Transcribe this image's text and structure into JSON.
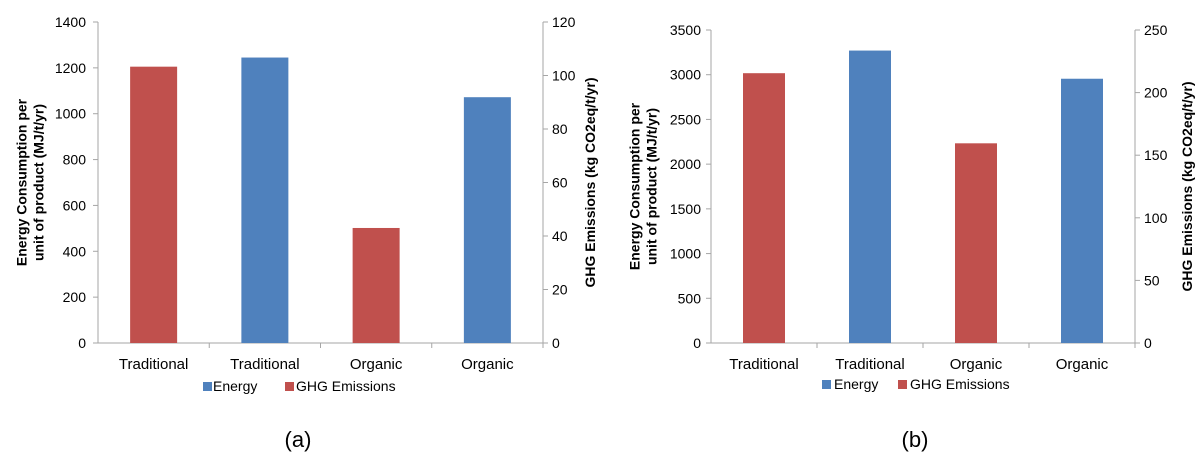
{
  "colors": {
    "energy": "#4f81bd",
    "ghg": "#c0504d",
    "axis": "#a6a6a6"
  },
  "chart_data": [
    {
      "type": "bar",
      "caption": "(a)",
      "categories": [
        "Traditional",
        "Traditional",
        "Organic",
        "Organic"
      ],
      "series": [
        {
          "name": "Energy",
          "axis": "left",
          "values": [
            null,
            1245,
            null,
            1072
          ]
        },
        {
          "name": "GHG Emissions",
          "axis": "right",
          "values": [
            103.3,
            null,
            43.0,
            null
          ]
        }
      ],
      "ylabel": "Energy Consumption per unit of product (MJ/t/yr)",
      "y2label": "GHG Emissions (kg CO2eq/t/yr)",
      "ylim": [
        0,
        1400
      ],
      "y2lim": [
        0,
        120
      ],
      "yticks": [
        "0",
        "200",
        "400",
        "600",
        "800",
        "1000",
        "1200",
        "1400"
      ],
      "y2ticks": [
        "0",
        "20",
        "40",
        "60",
        "80",
        "100",
        "120"
      ],
      "legend_position": "bottom",
      "grid": false
    },
    {
      "type": "bar",
      "caption": "(b)",
      "categories": [
        "Traditional",
        "Traditional",
        "Organic",
        "Organic"
      ],
      "series": [
        {
          "name": "Energy",
          "axis": "left",
          "values": [
            null,
            3270,
            null,
            2955
          ]
        },
        {
          "name": "GHG Emissions",
          "axis": "right",
          "values": [
            215.5,
            null,
            159.5,
            null
          ]
        }
      ],
      "ylabel": "Energy Consumption per unit of product (MJ/t/yr)",
      "y2label": "GHG Emissions (kg CO2eq/t/yr)",
      "ylim": [
        0,
        3500
      ],
      "y2lim": [
        0,
        250
      ],
      "yticks": [
        "0",
        "500",
        "1000",
        "1500",
        "2000",
        "2500",
        "3000",
        "3500"
      ],
      "y2ticks": [
        "0",
        "50",
        "100",
        "150",
        "200",
        "250"
      ],
      "legend_position": "bottom",
      "grid": false
    }
  ]
}
